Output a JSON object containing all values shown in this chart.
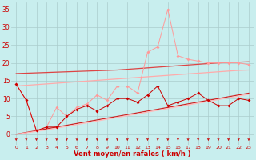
{
  "bg_color": "#c8eeee",
  "grid_color": "#aacccc",
  "xlabel": "Vent moyen/en rafales ( km/h )",
  "xlabel_color": "#cc0000",
  "tick_color": "#cc0000",
  "ylim": [
    -3,
    37
  ],
  "xlim": [
    -0.5,
    23.5
  ],
  "yticks": [
    0,
    5,
    10,
    15,
    20,
    25,
    30,
    35
  ],
  "xticks": [
    0,
    1,
    2,
    3,
    4,
    5,
    6,
    7,
    8,
    9,
    10,
    11,
    12,
    13,
    14,
    15,
    16,
    17,
    18,
    19,
    20,
    21,
    22,
    23
  ],
  "x": [
    0,
    1,
    2,
    3,
    4,
    5,
    6,
    7,
    8,
    9,
    10,
    11,
    12,
    13,
    14,
    15,
    16,
    17,
    18,
    19,
    20,
    21,
    22,
    23
  ],
  "line_dark_y": [
    14,
    9.5,
    1,
    2,
    2,
    5,
    7,
    8,
    6.5,
    8,
    10,
    10,
    9,
    11,
    13.5,
    8,
    9,
    10,
    11.5,
    9.5,
    8,
    8,
    10,
    9.5
  ],
  "line_dark_color": "#cc0000",
  "line_light_y": [
    14,
    9.5,
    1,
    2,
    7.5,
    5,
    7.5,
    8.5,
    11,
    9.5,
    13.5,
    13.5,
    11.5,
    23,
    24.5,
    35,
    22,
    21,
    20.5,
    20,
    20,
    20,
    20,
    19.5
  ],
  "line_light_color": "#ff9999",
  "trend1_y": [
    17.0,
    17.1,
    17.2,
    17.3,
    17.4,
    17.5,
    17.6,
    17.7,
    17.8,
    17.9,
    18.0,
    18.2,
    18.4,
    18.6,
    18.8,
    19.0,
    19.2,
    19.4,
    19.6,
    19.8,
    20.0,
    20.1,
    20.2,
    20.3
  ],
  "trend1_color": "#dd4444",
  "trend2_y": [
    13.5,
    13.7,
    13.9,
    14.1,
    14.3,
    14.5,
    14.7,
    14.9,
    15.1,
    15.3,
    15.5,
    15.7,
    15.9,
    16.1,
    16.3,
    16.5,
    16.7,
    16.9,
    17.1,
    17.3,
    17.5,
    17.7,
    17.9,
    18.0
  ],
  "trend2_color": "#ffaaaa",
  "trend3_y": [
    0.0,
    0.5,
    1.0,
    1.5,
    2.0,
    2.5,
    3.0,
    3.5,
    4.0,
    4.5,
    5.0,
    5.5,
    6.0,
    6.5,
    7.0,
    7.5,
    8.0,
    8.5,
    9.0,
    9.5,
    10.0,
    10.5,
    11.0,
    11.5
  ],
  "trend3_color": "#cc2222",
  "trend4_y": [
    0.0,
    0.4,
    0.8,
    1.2,
    1.7,
    2.2,
    2.7,
    3.2,
    3.7,
    4.2,
    4.7,
    5.2,
    5.7,
    6.2,
    6.7,
    7.2,
    7.7,
    8.2,
    8.7,
    9.2,
    9.7,
    10.2,
    10.7,
    11.2
  ],
  "trend4_color": "#ffbbbb",
  "arrow_color": "#cc0000"
}
